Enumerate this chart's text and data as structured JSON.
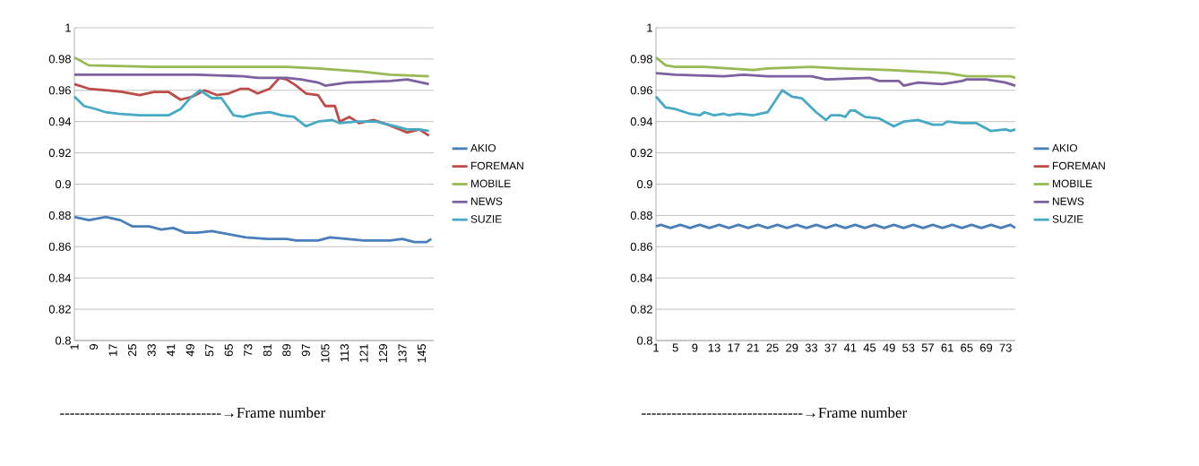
{
  "chart_data": [
    {
      "type": "line",
      "grid": "y",
      "legend": "right",
      "marker": "none",
      "line_style": "solid",
      "xlim": [
        1,
        150
      ],
      "xticks": [
        1,
        9,
        17,
        25,
        33,
        41,
        49,
        57,
        65,
        73,
        81,
        89,
        97,
        105,
        113,
        121,
        129,
        137,
        145
      ],
      "ylim": [
        0.8,
        1
      ],
      "yticks": [
        0.8,
        0.82,
        0.84,
        0.86,
        0.88,
        0.9,
        0.92,
        0.94,
        0.96,
        0.98,
        1
      ],
      "annotations": [
        "--------------------------------→Frame number"
      ],
      "series": [
        {
          "name": "AKIO",
          "color": "#4a7ebb",
          "x": [
            1,
            7,
            14,
            20,
            25,
            32,
            37,
            42,
            47,
            52,
            58,
            65,
            72,
            81,
            89,
            93,
            102,
            107,
            114,
            121,
            132,
            137,
            142,
            147,
            149
          ],
          "values": [
            0.879,
            0.877,
            0.879,
            0.877,
            0.873,
            0.873,
            0.871,
            0.872,
            0.869,
            0.869,
            0.87,
            0.868,
            0.866,
            0.865,
            0.865,
            0.864,
            0.864,
            0.866,
            0.865,
            0.864,
            0.864,
            0.865,
            0.863,
            0.863,
            0.865
          ]
        },
        {
          "name": "FOREMAN",
          "color": "#be4b48",
          "x": [
            1,
            7,
            15,
            21,
            28,
            34,
            40,
            42,
            45,
            50,
            55,
            60,
            65,
            70,
            73,
            77,
            82,
            86,
            89,
            93,
            97,
            102,
            105,
            109,
            111,
            115,
            119,
            125,
            131,
            136,
            139,
            144,
            148
          ],
          "values": [
            0.964,
            0.961,
            0.96,
            0.959,
            0.957,
            0.959,
            0.959,
            0.957,
            0.954,
            0.956,
            0.96,
            0.957,
            0.958,
            0.961,
            0.961,
            0.958,
            0.961,
            0.968,
            0.967,
            0.963,
            0.958,
            0.957,
            0.95,
            0.95,
            0.94,
            0.943,
            0.939,
            0.941,
            0.938,
            0.935,
            0.933,
            0.935,
            0.931
          ]
        },
        {
          "name": "MOBILE",
          "color": "#98b954",
          "x": [
            1,
            7,
            34,
            89,
            102,
            120,
            132,
            148
          ],
          "values": [
            0.981,
            0.976,
            0.975,
            0.975,
            0.974,
            0.972,
            0.97,
            0.969
          ]
        },
        {
          "name": "NEWS",
          "color": "#7d60a0",
          "x": [
            1,
            52,
            71,
            77,
            89,
            95,
            102,
            105,
            114,
            132,
            139,
            148
          ],
          "values": [
            0.97,
            0.97,
            0.969,
            0.968,
            0.968,
            0.967,
            0.965,
            0.963,
            0.965,
            0.966,
            0.967,
            0.964
          ]
        },
        {
          "name": "SUZIE",
          "color": "#46aac5",
          "x": [
            1,
            5,
            10,
            14,
            19,
            28,
            40,
            45,
            49,
            53,
            58,
            62,
            67,
            71,
            76,
            82,
            87,
            92,
            97,
            102,
            108,
            111,
            118,
            126,
            134,
            139,
            144,
            148
          ],
          "values": [
            0.956,
            0.95,
            0.948,
            0.946,
            0.945,
            0.944,
            0.944,
            0.948,
            0.955,
            0.96,
            0.955,
            0.955,
            0.944,
            0.943,
            0.945,
            0.946,
            0.944,
            0.943,
            0.937,
            0.94,
            0.941,
            0.939,
            0.94,
            0.94,
            0.937,
            0.935,
            0.935,
            0.934
          ]
        }
      ]
    },
    {
      "type": "line",
      "grid": "y",
      "legend": "right",
      "marker": "none",
      "line_style": "solid",
      "xlim": [
        1,
        75
      ],
      "xticks": [
        1,
        5,
        9,
        13,
        17,
        21,
        25,
        29,
        33,
        37,
        41,
        45,
        49,
        53,
        57,
        61,
        65,
        69,
        73
      ],
      "ylim": [
        0.8,
        1
      ],
      "yticks": [
        0.8,
        0.82,
        0.84,
        0.86,
        0.88,
        0.9,
        0.92,
        0.94,
        0.96,
        0.98,
        1
      ],
      "annotations": [
        "--------------------------------→Frame number"
      ],
      "series": [
        {
          "name": "AKIO",
          "color": "#4a7ebb",
          "x": [
            1,
            2,
            4,
            6,
            8,
            10,
            12,
            14,
            16,
            18,
            20,
            22,
            24,
            26,
            28,
            30,
            32,
            34,
            36,
            38,
            40,
            42,
            44,
            46,
            48,
            50,
            52,
            54,
            56,
            58,
            60,
            62,
            64,
            66,
            68,
            70,
            72,
            74,
            75
          ],
          "values": [
            0.873,
            0.874,
            0.872,
            0.874,
            0.872,
            0.874,
            0.872,
            0.874,
            0.872,
            0.874,
            0.872,
            0.874,
            0.872,
            0.874,
            0.872,
            0.874,
            0.872,
            0.874,
            0.872,
            0.874,
            0.872,
            0.874,
            0.872,
            0.874,
            0.872,
            0.874,
            0.872,
            0.874,
            0.872,
            0.874,
            0.872,
            0.874,
            0.872,
            0.874,
            0.872,
            0.874,
            0.872,
            0.874,
            0.872
          ]
        },
        {
          "name": "FOREMAN",
          "color": "#be4b48"
        },
        {
          "name": "MOBILE",
          "color": "#98b954",
          "x": [
            1,
            3,
            5,
            11,
            21,
            24,
            33,
            39,
            49,
            55,
            61,
            65,
            70,
            74,
            75
          ],
          "values": [
            0.981,
            0.976,
            0.975,
            0.975,
            0.973,
            0.974,
            0.975,
            0.974,
            0.973,
            0.972,
            0.971,
            0.969,
            0.969,
            0.969,
            0.968
          ]
        },
        {
          "name": "NEWS",
          "color": "#7d60a0",
          "x": [
            1,
            5,
            15,
            19,
            24,
            33,
            36,
            45,
            47,
            51,
            52,
            55,
            60,
            64,
            65,
            69,
            73,
            75
          ],
          "values": [
            0.971,
            0.97,
            0.969,
            0.97,
            0.969,
            0.969,
            0.967,
            0.968,
            0.966,
            0.966,
            0.963,
            0.965,
            0.964,
            0.966,
            0.967,
            0.967,
            0.965,
            0.963
          ]
        },
        {
          "name": "SUZIE",
          "color": "#46aac5",
          "x": [
            1,
            3,
            5,
            8,
            10,
            11,
            13,
            15,
            16,
            18,
            21,
            24,
            27,
            29,
            31,
            34,
            36,
            37,
            39,
            40,
            41,
            42,
            44,
            47,
            50,
            52,
            55,
            58,
            60,
            61,
            64,
            67,
            70,
            73,
            74,
            75
          ],
          "values": [
            0.956,
            0.949,
            0.948,
            0.945,
            0.944,
            0.946,
            0.944,
            0.945,
            0.944,
            0.945,
            0.944,
            0.946,
            0.96,
            0.956,
            0.955,
            0.946,
            0.941,
            0.944,
            0.944,
            0.943,
            0.947,
            0.947,
            0.943,
            0.942,
            0.937,
            0.94,
            0.941,
            0.938,
            0.938,
            0.94,
            0.939,
            0.939,
            0.934,
            0.935,
            0.934,
            0.935
          ]
        }
      ]
    }
  ]
}
